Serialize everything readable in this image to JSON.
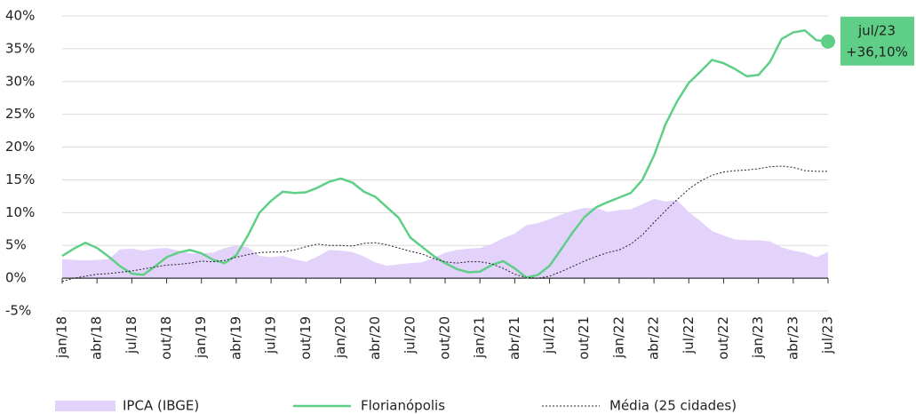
{
  "chart_data": {
    "type": "line",
    "categories": [
      "jan/18",
      null,
      null,
      "abr/18",
      null,
      null,
      "jul/18",
      null,
      null,
      "out/18",
      null,
      null,
      "jan/19",
      null,
      null,
      "abr/19",
      null,
      null,
      "jul/19",
      null,
      null,
      "out/19",
      null,
      null,
      "jan/20",
      null,
      null,
      "abr/20",
      null,
      null,
      "jul/20",
      null,
      null,
      "out/20",
      null,
      null,
      "jan/21",
      null,
      null,
      "abr/21",
      null,
      null,
      "jul/21",
      null,
      null,
      "out/21",
      null,
      null,
      "jan/22",
      null,
      null,
      "abr/22",
      null,
      null,
      "jul/22",
      null,
      null,
      "out/22",
      null,
      null,
      "jan/23",
      null,
      null,
      "abr/23",
      null,
      null,
      "jul/23"
    ],
    "series": [
      {
        "name": "IPCA (IBGE)",
        "type": "area",
        "color": "#e3d3fb",
        "values": [
          2.9,
          2.8,
          2.7,
          2.8,
          2.9,
          4.4,
          4.5,
          4.2,
          4.5,
          4.6,
          4.2,
          3.8,
          3.8,
          3.9,
          4.6,
          5.0,
          4.7,
          3.4,
          3.2,
          3.4,
          2.9,
          2.5,
          3.3,
          4.3,
          4.2,
          4.0,
          3.3,
          2.4,
          1.9,
          2.1,
          2.3,
          2.4,
          3.1,
          3.9,
          4.3,
          4.5,
          4.6,
          5.2,
          6.1,
          6.8,
          8.1,
          8.4,
          9.0,
          9.7,
          10.3,
          10.7,
          10.7,
          10.1,
          10.4,
          10.5,
          11.3,
          12.1,
          11.7,
          11.9,
          10.1,
          8.7,
          7.2,
          6.5,
          5.9,
          5.8,
          5.8,
          5.6,
          4.7,
          4.2,
          3.9,
          3.2,
          4.0
        ]
      },
      {
        "name": "Florianópolis",
        "type": "line",
        "color": "#5fcf87",
        "values": [
          3.4,
          4.5,
          5.4,
          4.6,
          3.3,
          1.8,
          0.7,
          0.5,
          1.8,
          3.2,
          3.9,
          4.3,
          3.8,
          2.8,
          2.3,
          3.5,
          6.5,
          10.0,
          11.8,
          13.2,
          13.0,
          13.1,
          13.8,
          14.7,
          15.2,
          14.6,
          13.2,
          12.4,
          10.8,
          9.2,
          6.2,
          4.8,
          3.4,
          2.3,
          1.4,
          0.9,
          1.0,
          2.0,
          2.6,
          1.5,
          0.1,
          0.5,
          1.9,
          4.4,
          7.0,
          9.3,
          10.8,
          11.6,
          12.3,
          13.0,
          15.0,
          18.7,
          23.5,
          27.0,
          29.8,
          31.5,
          33.3,
          32.8,
          31.9,
          30.8,
          31.0,
          33.0,
          36.5,
          37.5,
          37.8,
          36.3,
          36.1
        ],
        "value_labels": [
          null,
          null,
          null,
          null,
          null,
          null,
          null,
          null,
          null,
          null,
          null,
          null,
          null,
          null,
          null,
          null,
          null,
          null,
          null,
          null,
          null,
          null,
          null,
          null,
          null,
          null,
          null,
          null,
          null,
          null,
          null,
          null,
          null,
          null,
          null,
          null,
          null,
          null,
          null,
          null,
          null,
          null,
          null,
          null,
          null,
          null,
          null,
          null,
          null,
          null,
          null,
          null,
          null,
          null,
          null,
          null,
          null,
          null,
          null,
          null,
          null,
          null,
          null,
          null,
          null,
          null,
          "+36,10%"
        ]
      },
      {
        "name": "Média (25 cidades)",
        "type": "line",
        "style": "dotted",
        "color": "#222222",
        "values": [
          -0.5,
          0.0,
          0.3,
          0.6,
          0.7,
          0.9,
          1.1,
          1.4,
          1.7,
          2.0,
          2.1,
          2.3,
          2.6,
          2.5,
          2.7,
          3.2,
          3.6,
          3.9,
          4.0,
          4.0,
          4.3,
          4.8,
          5.2,
          5.0,
          5.0,
          4.9,
          5.3,
          5.4,
          5.1,
          4.6,
          4.1,
          3.7,
          3.0,
          2.5,
          2.3,
          2.5,
          2.5,
          2.2,
          1.5,
          0.6,
          0.1,
          0.0,
          0.3,
          1.0,
          1.8,
          2.6,
          3.3,
          3.9,
          4.3,
          5.2,
          6.6,
          8.5,
          10.3,
          12.0,
          13.6,
          14.8,
          15.7,
          16.2,
          16.4,
          16.5,
          16.7,
          17.0,
          17.1,
          16.9,
          16.4,
          16.3,
          16.3
        ]
      }
    ],
    "ylim": [
      -5,
      40
    ],
    "yticks": [
      {
        "value": -5,
        "label": "-5%"
      },
      {
        "value": 0,
        "label": "0%"
      },
      {
        "value": 5,
        "label": "5%"
      },
      {
        "value": 10,
        "label": "10%"
      },
      {
        "value": 15,
        "label": "15%"
      },
      {
        "value": 20,
        "label": "20%"
      },
      {
        "value": 25,
        "label": "25%"
      },
      {
        "value": 30,
        "label": "30%"
      },
      {
        "value": 35,
        "label": "35%"
      },
      {
        "value": 40,
        "label": "40%"
      }
    ],
    "grid": true,
    "legend": "bottom"
  }
}
